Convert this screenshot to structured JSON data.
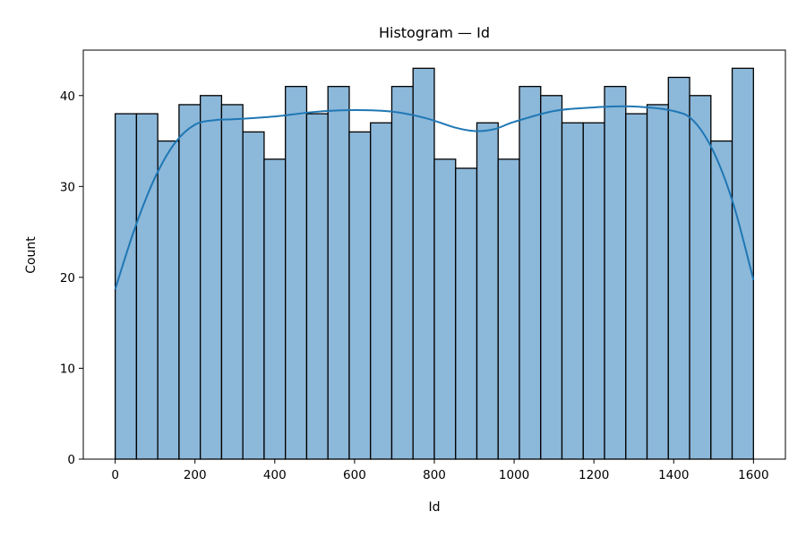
{
  "chart_data": {
    "type": "bar",
    "title": "Histogram — Id",
    "xlabel": "Id",
    "ylabel": "Count",
    "xlim": [
      -80,
      1680
    ],
    "ylim": [
      0,
      45
    ],
    "xticks": [
      0,
      200,
      400,
      600,
      800,
      1000,
      1200,
      1400,
      1600
    ],
    "yticks": [
      0,
      10,
      20,
      30,
      40
    ],
    "grid": false,
    "legend": "none",
    "bin_start": 0,
    "bin_width": 53.33,
    "counts": [
      38,
      38,
      35,
      39,
      40,
      39,
      36,
      33,
      41,
      38,
      41,
      36,
      37,
      41,
      43,
      33,
      32,
      37,
      33,
      41,
      40,
      37,
      37,
      41,
      38,
      39,
      42,
      40,
      35,
      43
    ],
    "bar_color": "#8cb8da",
    "edge_color": "#000000",
    "kde": {
      "color": "#1f77b4",
      "x": [
        0,
        50,
        100,
        150,
        200,
        250,
        300,
        400,
        500,
        600,
        700,
        780,
        850,
        900,
        950,
        1000,
        1100,
        1200,
        1300,
        1400,
        1450,
        1500,
        1550,
        1600
      ],
      "y": [
        18.7,
        25.5,
        31.0,
        34.8,
        36.8,
        37.3,
        37.4,
        37.7,
        38.2,
        38.4,
        38.2,
        37.5,
        36.5,
        36.1,
        36.3,
        37.1,
        38.3,
        38.7,
        38.8,
        38.3,
        37.2,
        33.8,
        28.0,
        19.7
      ]
    }
  }
}
